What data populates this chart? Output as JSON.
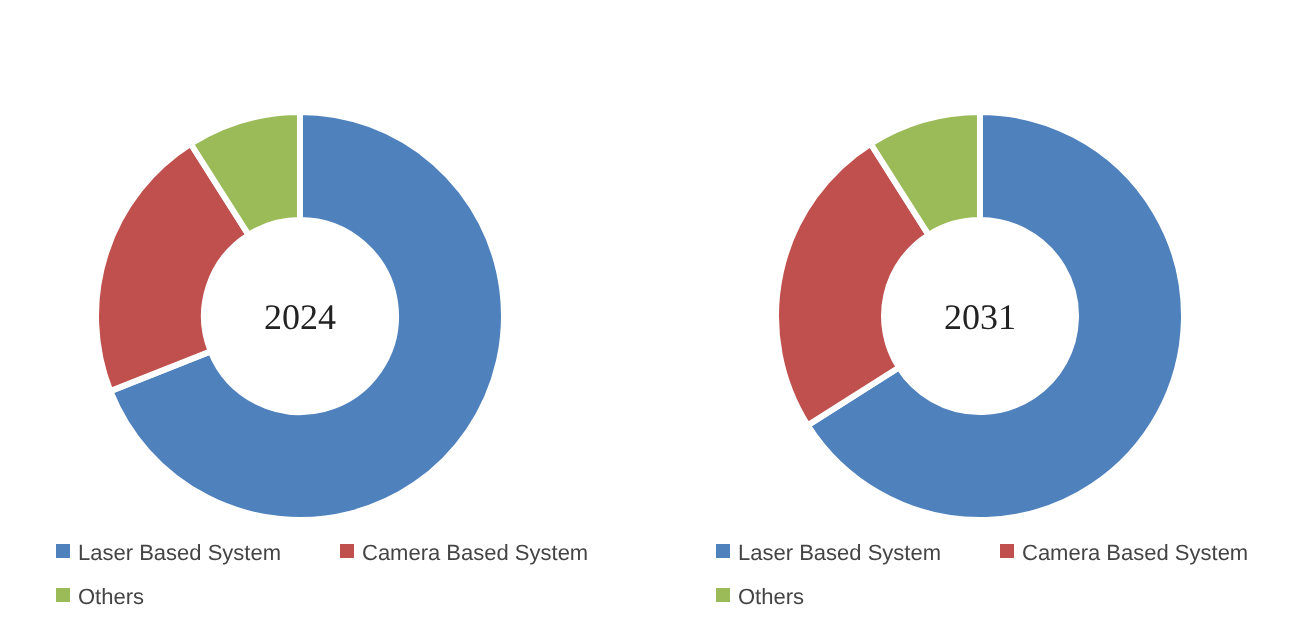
{
  "chart_data": [
    {
      "type": "donut",
      "title": "2024",
      "categories": [
        "Laser Based System",
        "Camera Based System",
        "Others"
      ],
      "values": [
        69,
        22,
        9
      ],
      "colors": [
        "#4f81bd",
        "#c0504d",
        "#9bbb59"
      ],
      "legend": "bottom"
    },
    {
      "type": "donut",
      "title": "2031",
      "categories": [
        "Laser Based System",
        "Camera Based System",
        "Others"
      ],
      "values": [
        66,
        25,
        9
      ],
      "colors": [
        "#4f81bd",
        "#c0504d",
        "#9bbb59"
      ],
      "legend": "bottom"
    }
  ]
}
